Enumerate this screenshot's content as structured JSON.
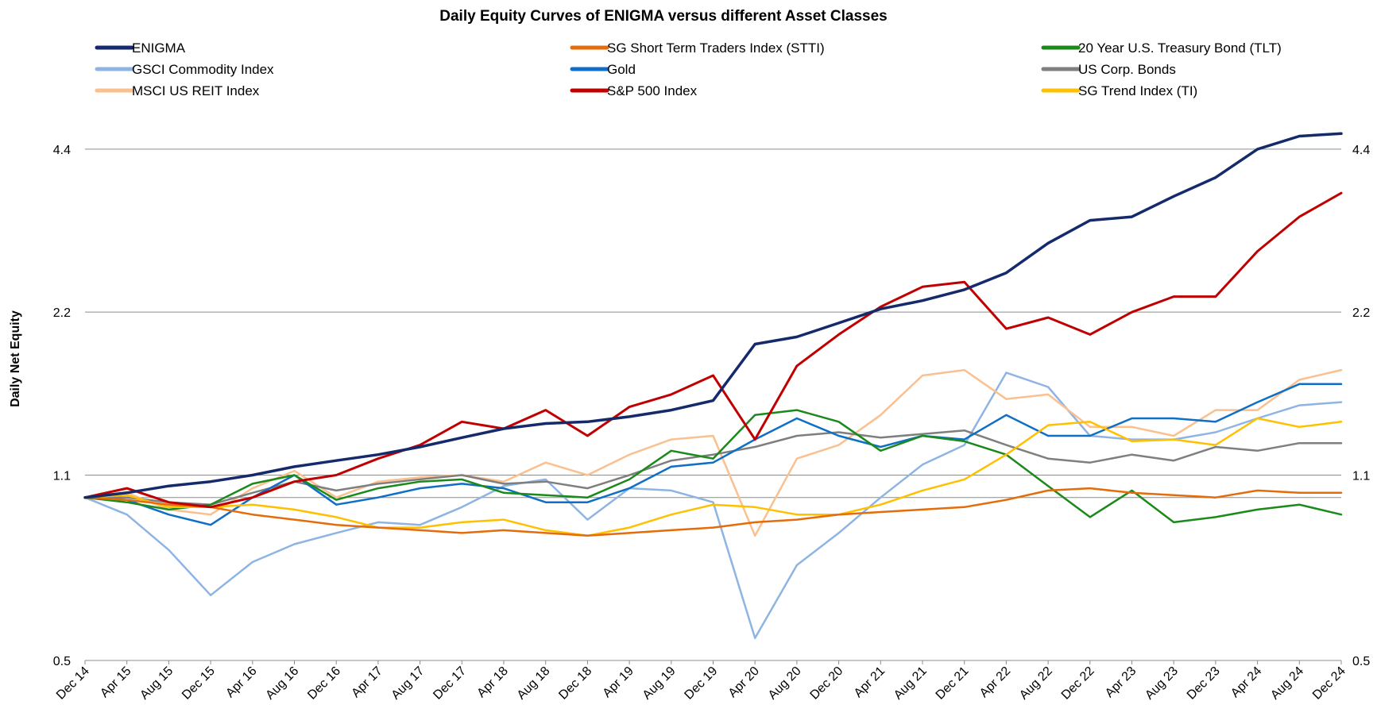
{
  "chart_data": {
    "type": "line",
    "title": "Daily Equity Curves of ENIGMA versus different Asset Classes",
    "ylabel": "Daily Net Equity",
    "xlabel": "",
    "y_scale": "log",
    "ylim": [
      0.5,
      5.0
    ],
    "y_ticks": [
      0.5,
      1.1,
      2.2,
      4.4
    ],
    "y_tick_labels": [
      "0.5",
      "1.1",
      "2.2",
      "4.4"
    ],
    "secondary_y_axis": true,
    "grid": "horizontal",
    "legend_position": "top",
    "x_tick_labels": [
      "Dec 14",
      "Apr 15",
      "Aug 15",
      "Dec 15",
      "Apr 16",
      "Aug 16",
      "Dec 16",
      "Apr 17",
      "Aug 17",
      "Dec 17",
      "Apr 18",
      "Aug 18",
      "Dec 18",
      "Apr 19",
      "Aug 19",
      "Dec 19",
      "Apr 20",
      "Aug 20",
      "Dec 20",
      "Apr 21",
      "Aug 21",
      "Dec 21",
      "Apr 22",
      "Aug 22",
      "Dec 22",
      "Apr 23",
      "Aug 23",
      "Dec 23",
      "Apr 24",
      "Aug 24",
      "Dec 24"
    ],
    "x": [
      "Dec 14",
      "Apr 15",
      "Aug 15",
      "Dec 15",
      "Apr 16",
      "Aug 16",
      "Dec 16",
      "Apr 17",
      "Aug 17",
      "Dec 17",
      "Apr 18",
      "Aug 18",
      "Dec 18",
      "Apr 19",
      "Aug 19",
      "Dec 19",
      "Apr 20",
      "Aug 20",
      "Dec 20",
      "Apr 21",
      "Aug 21",
      "Dec 21",
      "Apr 22",
      "Aug 22",
      "Dec 22",
      "Apr 23",
      "Aug 23",
      "Dec 23",
      "Apr 24",
      "Aug 24",
      "Dec 24"
    ],
    "series": [
      {
        "name": "ENIGMA",
        "color": "#152a6b",
        "width": 3.5,
        "values": [
          1.0,
          1.02,
          1.05,
          1.07,
          1.1,
          1.14,
          1.17,
          1.2,
          1.24,
          1.29,
          1.34,
          1.37,
          1.38,
          1.41,
          1.45,
          1.51,
          1.92,
          1.98,
          2.1,
          2.23,
          2.31,
          2.42,
          2.6,
          2.95,
          3.25,
          3.3,
          3.6,
          3.9,
          4.4,
          4.65,
          4.7
        ]
      },
      {
        "name": "SG Short Term Traders Index (STTI)",
        "color": "#e46c0a",
        "width": 2.5,
        "values": [
          1.0,
          0.99,
          0.97,
          0.96,
          0.93,
          0.91,
          0.89,
          0.88,
          0.87,
          0.86,
          0.87,
          0.86,
          0.85,
          0.86,
          0.87,
          0.88,
          0.9,
          0.91,
          0.93,
          0.94,
          0.95,
          0.96,
          0.99,
          1.03,
          1.04,
          1.02,
          1.01,
          1.0,
          1.03,
          1.02,
          1.02
        ]
      },
      {
        "name": "20 Year U.S. Treasury Bond (TLT)",
        "color": "#1b8a1b",
        "width": 2.5,
        "values": [
          1.0,
          0.98,
          0.95,
          0.97,
          1.06,
          1.1,
          0.99,
          1.04,
          1.07,
          1.08,
          1.02,
          1.01,
          1.0,
          1.08,
          1.22,
          1.18,
          1.42,
          1.45,
          1.38,
          1.22,
          1.3,
          1.27,
          1.2,
          1.05,
          0.92,
          1.03,
          0.9,
          0.92,
          0.95,
          0.97,
          0.93
        ]
      },
      {
        "name": "GSCI Commodity Index",
        "color": "#8eb4e3",
        "width": 2.5,
        "values": [
          1.0,
          0.93,
          0.8,
          0.66,
          0.76,
          0.82,
          0.86,
          0.9,
          0.89,
          0.96,
          1.05,
          1.08,
          0.91,
          1.04,
          1.03,
          0.98,
          0.55,
          0.75,
          0.86,
          1.0,
          1.15,
          1.25,
          1.7,
          1.6,
          1.3,
          1.28,
          1.28,
          1.32,
          1.4,
          1.48,
          1.5
        ]
      },
      {
        "name": "Gold",
        "color": "#0f6fc6",
        "width": 2.5,
        "values": [
          1.0,
          0.99,
          0.93,
          0.89,
          1.0,
          1.1,
          0.97,
          1.0,
          1.04,
          1.06,
          1.04,
          0.98,
          0.98,
          1.04,
          1.14,
          1.16,
          1.28,
          1.4,
          1.3,
          1.24,
          1.3,
          1.28,
          1.42,
          1.3,
          1.3,
          1.4,
          1.4,
          1.38,
          1.5,
          1.62,
          1.62
        ]
      },
      {
        "name": "US Corp. Bonds",
        "color": "#7f7f7f",
        "width": 2.5,
        "values": [
          1.0,
          1.0,
          0.98,
          0.97,
          1.02,
          1.07,
          1.03,
          1.06,
          1.08,
          1.1,
          1.06,
          1.07,
          1.04,
          1.1,
          1.17,
          1.2,
          1.24,
          1.3,
          1.32,
          1.29,
          1.31,
          1.33,
          1.25,
          1.18,
          1.16,
          1.2,
          1.17,
          1.24,
          1.22,
          1.26,
          1.26
        ]
      },
      {
        "name": "MSCI US REIT Index",
        "color": "#fac090",
        "width": 2.5,
        "values": [
          1.0,
          1.02,
          0.95,
          0.93,
          1.04,
          1.12,
          1.0,
          1.07,
          1.09,
          1.1,
          1.07,
          1.16,
          1.1,
          1.2,
          1.28,
          1.3,
          0.85,
          1.18,
          1.25,
          1.42,
          1.68,
          1.72,
          1.52,
          1.55,
          1.35,
          1.35,
          1.3,
          1.45,
          1.45,
          1.65,
          1.72
        ]
      },
      {
        "name": "S&P 500 Index",
        "color": "#c00000",
        "width": 3.0,
        "values": [
          1.0,
          1.04,
          0.98,
          0.96,
          1.0,
          1.07,
          1.1,
          1.18,
          1.25,
          1.38,
          1.34,
          1.45,
          1.3,
          1.47,
          1.55,
          1.68,
          1.28,
          1.75,
          2.0,
          2.25,
          2.45,
          2.5,
          2.05,
          2.15,
          2.0,
          2.2,
          2.35,
          2.35,
          2.85,
          3.3,
          3.65
        ]
      },
      {
        "name": "SG Trend Index (TI)",
        "color": "#ffc000",
        "width": 2.5,
        "values": [
          1.0,
          1.01,
          0.96,
          0.96,
          0.97,
          0.95,
          0.92,
          0.88,
          0.88,
          0.9,
          0.91,
          0.87,
          0.85,
          0.88,
          0.93,
          0.97,
          0.96,
          0.93,
          0.93,
          0.97,
          1.03,
          1.08,
          1.2,
          1.36,
          1.38,
          1.27,
          1.28,
          1.25,
          1.4,
          1.35,
          1.38
        ]
      }
    ]
  }
}
